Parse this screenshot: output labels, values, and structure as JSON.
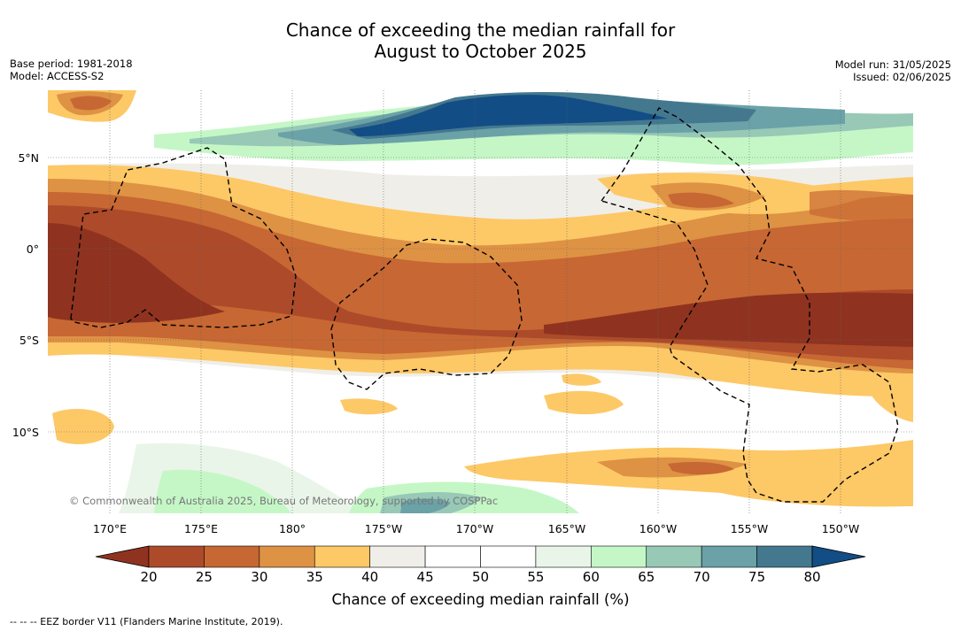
{
  "title_line1": "Chance of exceeding the median rainfall for",
  "title_line2": "August to October 2025",
  "meta_left": {
    "base_period": "Base period: 1981-2018",
    "model": "Model: ACCESS-S2"
  },
  "meta_right": {
    "model_run": "Model run: 31/05/2025",
    "issued": "Issued: 02/06/2025"
  },
  "lat_labels": [
    "5°N",
    "0°",
    "5°S",
    "10°S"
  ],
  "lon_labels": [
    "170°E",
    "175°E",
    "180°",
    "175°W",
    "170°W",
    "165°W",
    "160°W",
    "155°W",
    "150°W"
  ],
  "copyright": "© Commonwealth of Australia 2025, Bureau of Meteorology, supported by COSPPac",
  "colorbar": {
    "ticks": [
      "20",
      "25",
      "30",
      "35",
      "40",
      "45",
      "50",
      "55",
      "60",
      "65",
      "70",
      "75",
      "80"
    ],
    "colors": [
      "#8f3320",
      "#ad4a2a",
      "#c76733",
      "#de9244",
      "#fdc866",
      "#f0eee8",
      "#ffffff",
      "#ffffff",
      "#e9f5e8",
      "#c5f7c6",
      "#97c9b6",
      "#6aa2a8",
      "#44788f",
      "#124d85"
    ],
    "label": "Chance of exceeding median rainfall (%)"
  },
  "footnote": "--  --  -- EEZ border V11 (Flanders Marine Institute, 2019)."
}
